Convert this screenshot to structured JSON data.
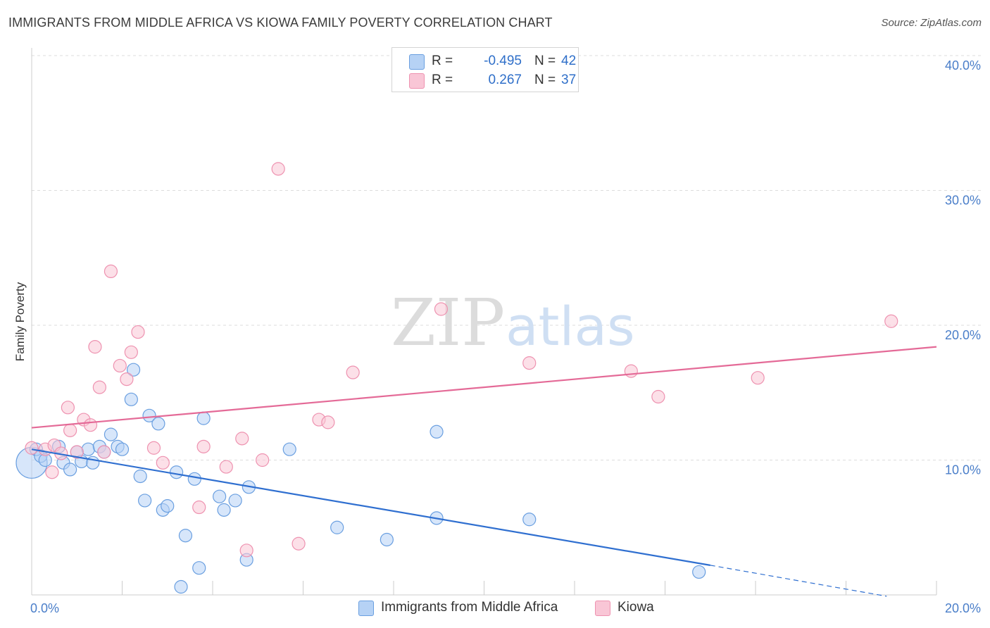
{
  "header": {
    "title": "IMMIGRANTS FROM MIDDLE AFRICA VS KIOWA FAMILY POVERTY CORRELATION CHART",
    "source": "Source: ZipAtlas.com"
  },
  "watermark": {
    "zip": "ZIP",
    "atlas": "atlas"
  },
  "legend": {
    "rows": [
      {
        "r_label": "R =",
        "r_value": "-0.495",
        "n_label": "N =",
        "n_value": "42"
      },
      {
        "r_label": "R =",
        "r_value": "0.267",
        "n_label": "N =",
        "n_value": "37"
      }
    ]
  },
  "colors": {
    "blue_fill": "#b6d2f5",
    "blue_stroke": "#6a9fe0",
    "blue_line": "#2f6fd0",
    "pink_fill": "#f9c6d6",
    "pink_stroke": "#ee92b0",
    "pink_line": "#e46a97"
  },
  "chart_data": {
    "type": "scatter",
    "title": "IMMIGRANTS FROM MIDDLE AFRICA VS KIOWA FAMILY POVERTY CORRELATION CHART",
    "xlabel": "",
    "ylabel": "Family Poverty",
    "xlim": [
      0,
      20
    ],
    "ylim": [
      0,
      40
    ],
    "x_ticks": [
      "0.0%",
      "20.0%"
    ],
    "y_ticks": [
      {
        "value": 10,
        "label": "10.0%"
      },
      {
        "value": 20,
        "label": "20.0%"
      },
      {
        "value": 30,
        "label": "30.0%"
      },
      {
        "value": 40,
        "label": "40.0%"
      }
    ],
    "grid": "horizontal dashed",
    "legend_position": "top-center",
    "series": [
      {
        "name": "Immigrants from Middle Africa",
        "r": -0.495,
        "n": 42,
        "trend": {
          "x0": 0,
          "y0": 10.8,
          "x1": 15.0,
          "y1": 2.2,
          "dashed_to_x": 18.9,
          "dashed_to_y": -0.1
        },
        "points": [
          [
            0.0,
            9.8,
            22
          ],
          [
            0.1,
            10.8,
            9
          ],
          [
            0.2,
            10.3,
            9
          ],
          [
            0.3,
            10.0,
            9
          ],
          [
            0.6,
            11.0,
            9
          ],
          [
            0.7,
            9.8,
            9
          ],
          [
            0.85,
            9.3,
            9
          ],
          [
            1.0,
            10.6,
            9
          ],
          [
            1.1,
            9.9,
            9
          ],
          [
            1.25,
            10.8,
            9
          ],
          [
            1.35,
            9.8,
            9
          ],
          [
            1.5,
            11.0,
            9
          ],
          [
            1.6,
            10.6,
            9
          ],
          [
            1.75,
            11.9,
            9
          ],
          [
            1.9,
            11.0,
            9
          ],
          [
            2.0,
            10.8,
            9
          ],
          [
            2.2,
            14.5,
            9
          ],
          [
            2.25,
            16.7,
            9
          ],
          [
            2.4,
            8.8,
            9
          ],
          [
            2.5,
            7.0,
            9
          ],
          [
            2.6,
            13.3,
            9
          ],
          [
            2.8,
            12.7,
            9
          ],
          [
            2.9,
            6.3,
            9
          ],
          [
            3.0,
            6.6,
            9
          ],
          [
            3.2,
            9.1,
            9
          ],
          [
            3.4,
            4.4,
            9
          ],
          [
            3.6,
            8.6,
            9
          ],
          [
            3.3,
            0.6,
            9
          ],
          [
            3.7,
            2.0,
            9
          ],
          [
            3.8,
            13.1,
            9
          ],
          [
            4.15,
            7.3,
            9
          ],
          [
            4.25,
            6.3,
            9
          ],
          [
            4.5,
            7.0,
            9
          ],
          [
            4.75,
            2.6,
            9
          ],
          [
            4.8,
            8.0,
            9
          ],
          [
            5.7,
            10.8,
            9
          ],
          [
            6.75,
            5.0,
            9
          ],
          [
            7.85,
            4.1,
            9
          ],
          [
            8.95,
            5.7,
            9
          ],
          [
            8.95,
            12.1,
            9
          ],
          [
            11.0,
            5.6,
            9
          ],
          [
            14.75,
            1.7,
            9
          ]
        ]
      },
      {
        "name": "Kiowa",
        "r": 0.267,
        "n": 37,
        "trend": {
          "x0": 0,
          "y0": 12.4,
          "x1": 20,
          "y1": 18.4
        },
        "points": [
          [
            0.0,
            10.9,
            9
          ],
          [
            0.3,
            10.8,
            9
          ],
          [
            0.5,
            11.1,
            9
          ],
          [
            0.45,
            9.1,
            9
          ],
          [
            0.65,
            10.5,
            9
          ],
          [
            0.8,
            13.9,
            9
          ],
          [
            0.85,
            12.2,
            9
          ],
          [
            1.0,
            10.6,
            9
          ],
          [
            1.15,
            13.0,
            9
          ],
          [
            1.3,
            12.6,
            9
          ],
          [
            1.4,
            18.4,
            9
          ],
          [
            1.5,
            15.4,
            9
          ],
          [
            1.6,
            10.6,
            9
          ],
          [
            1.75,
            24.0,
            9
          ],
          [
            1.95,
            17.0,
            9
          ],
          [
            2.1,
            16.0,
            9
          ],
          [
            2.2,
            18.0,
            9
          ],
          [
            2.35,
            19.5,
            9
          ],
          [
            2.7,
            10.9,
            9
          ],
          [
            2.9,
            9.8,
            9
          ],
          [
            3.8,
            11.0,
            9
          ],
          [
            3.7,
            6.5,
            9
          ],
          [
            4.3,
            9.5,
            9
          ],
          [
            4.65,
            11.6,
            9
          ],
          [
            4.75,
            3.3,
            9
          ],
          [
            5.1,
            10.0,
            9
          ],
          [
            5.45,
            31.6,
            9
          ],
          [
            5.9,
            3.8,
            9
          ],
          [
            6.35,
            13.0,
            9
          ],
          [
            6.55,
            12.8,
            9
          ],
          [
            7.1,
            16.5,
            9
          ],
          [
            9.05,
            21.2,
            9
          ],
          [
            11.0,
            17.2,
            9
          ],
          [
            13.25,
            16.6,
            9
          ],
          [
            13.85,
            14.7,
            9
          ],
          [
            16.05,
            16.1,
            9
          ],
          [
            19.0,
            20.3,
            9
          ]
        ]
      }
    ]
  }
}
